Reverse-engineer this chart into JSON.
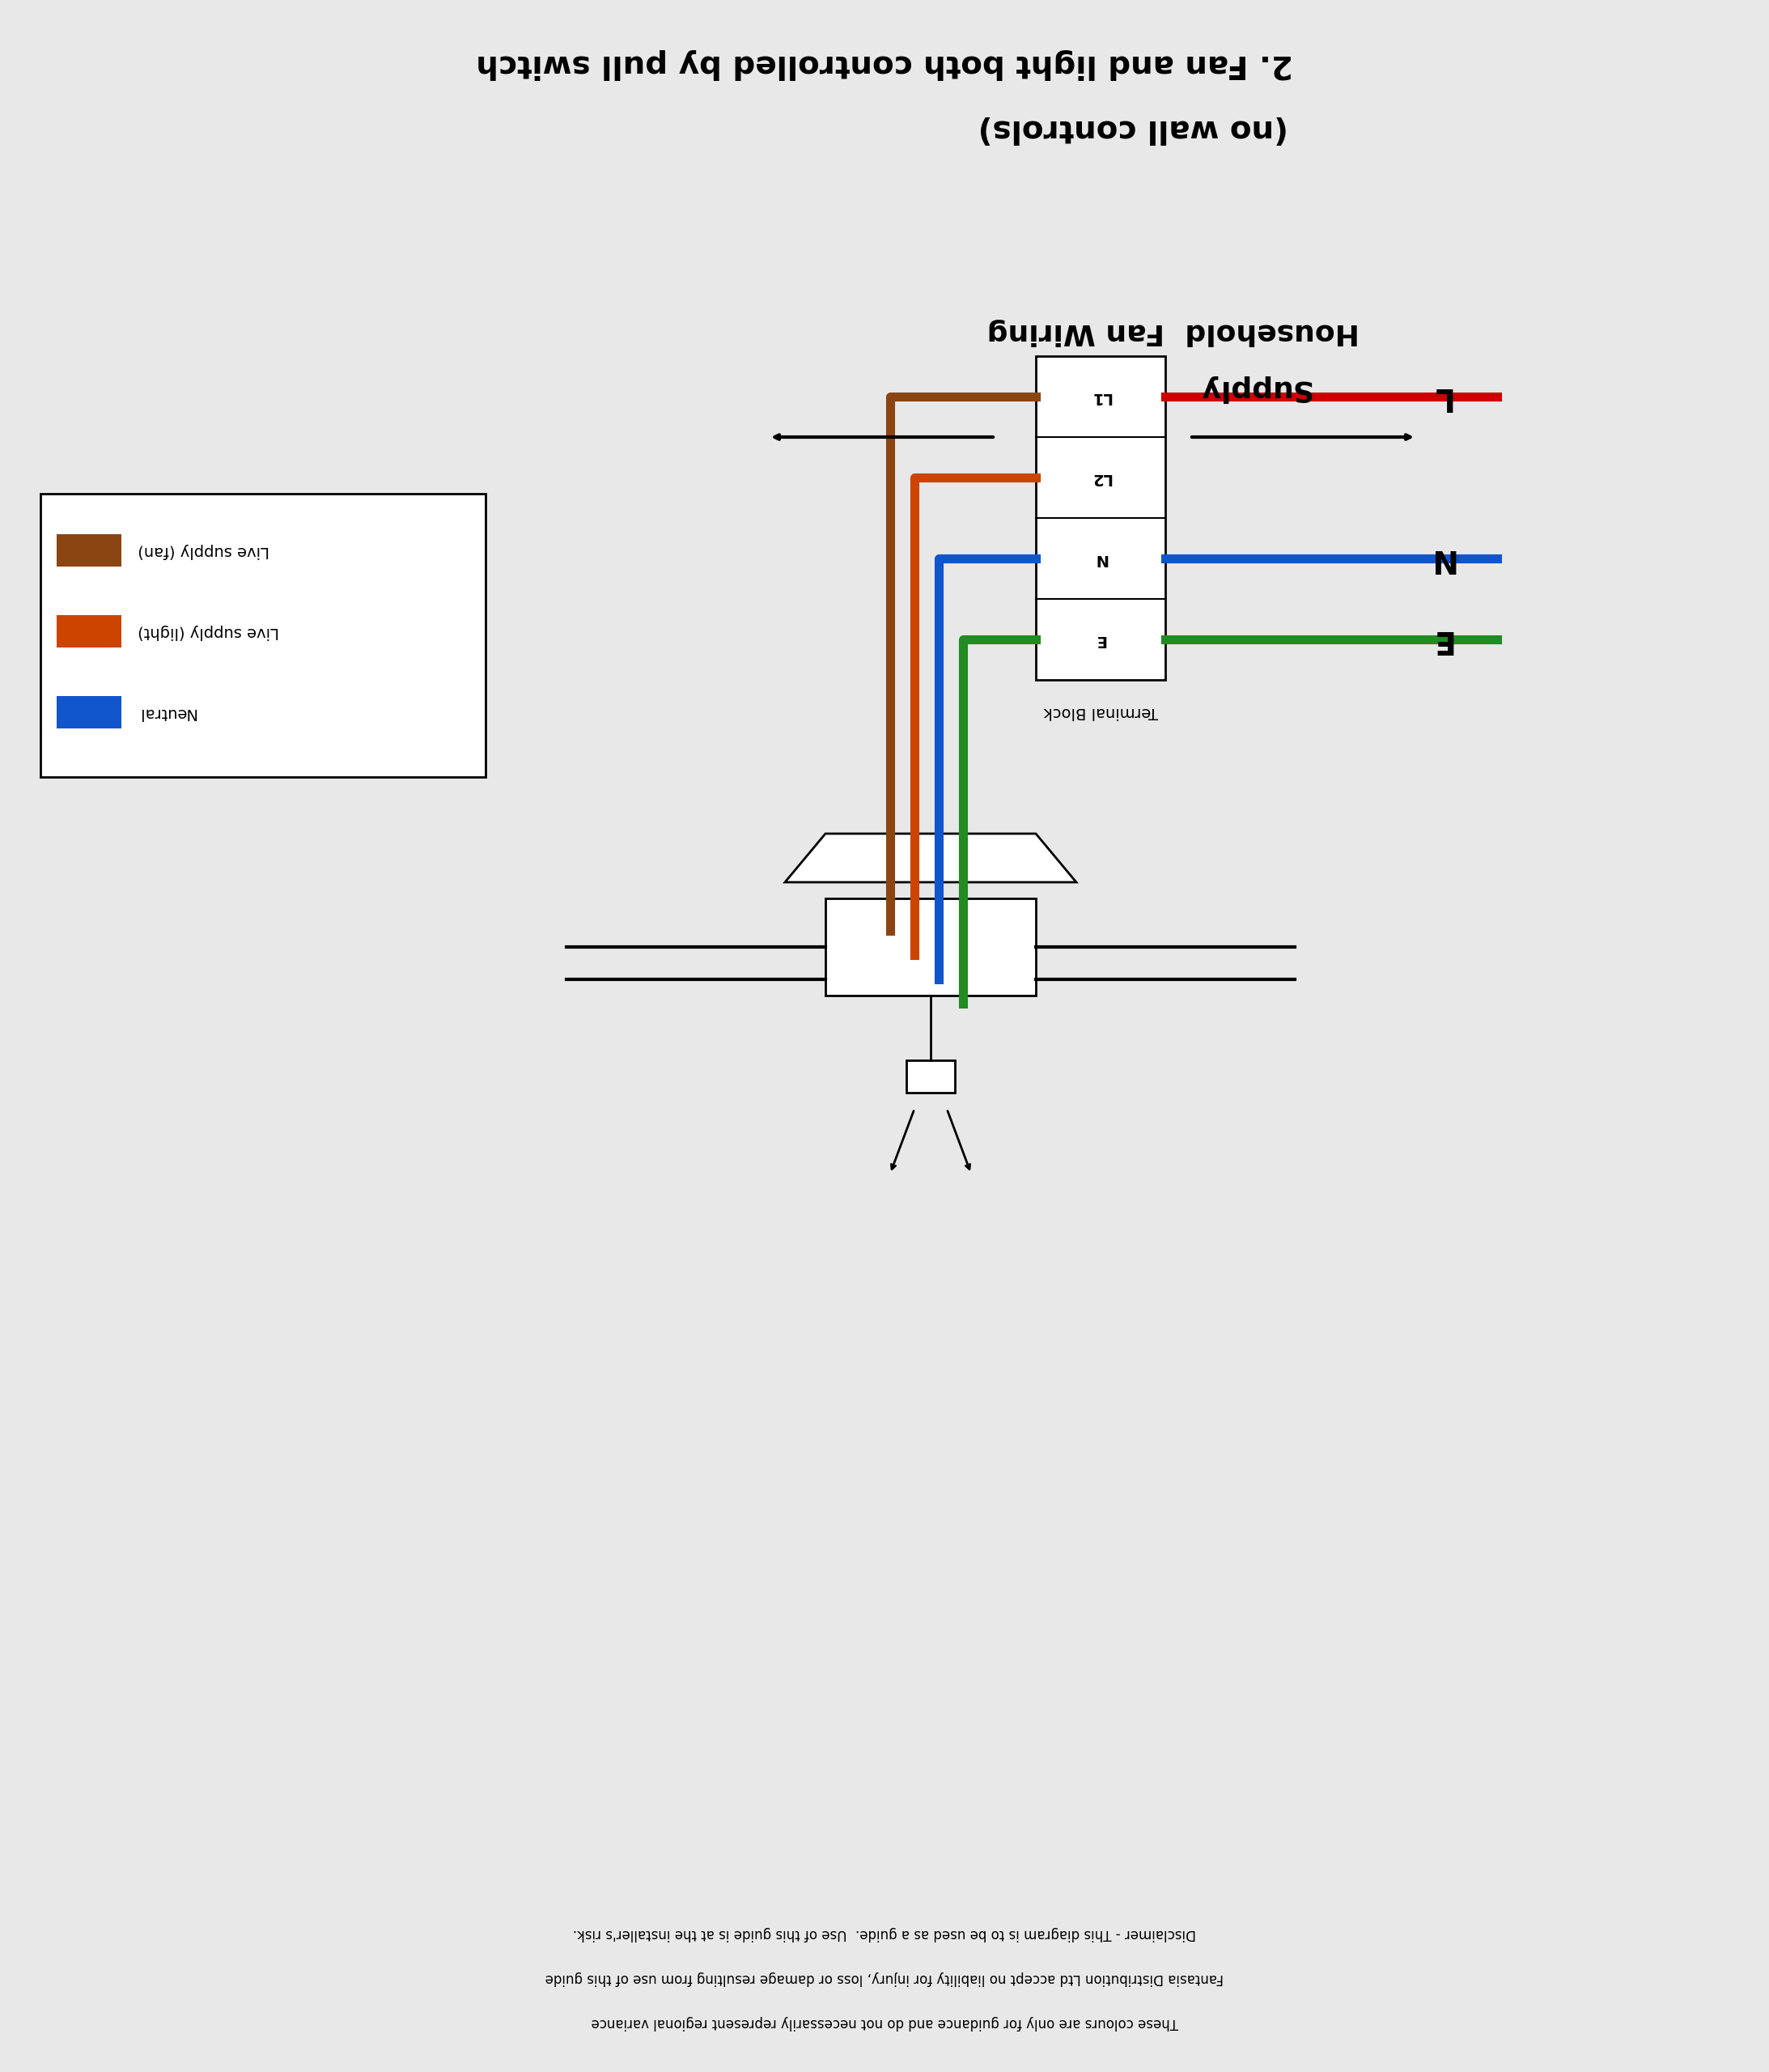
{
  "title_line1": "2. Fan and light both controlled by pull switch",
  "title_line2": "(no wall controls)",
  "supply_label": "Household  Fan Wiring\nSupply",
  "bg_color": "#e8e8e8",
  "wire_colors": {
    "brown": "#8B4513",
    "orange": "#CC4400",
    "blue": "#1155CC",
    "green": "#228B22",
    "red": "#CC0000"
  },
  "legend_items": [
    {
      "label": "Live supply (fan)",
      "color": "#8B4513"
    },
    {
      "label": "Live supply (light)",
      "color": "#CC4400"
    },
    {
      "label": "Neutral",
      "color": "#1155CC"
    }
  ],
  "terminal_labels": [
    "L1",
    "L2",
    "N",
    "E"
  ],
  "side_labels": [
    "L",
    "N",
    "E"
  ],
  "terminal_block_label": "Terminal Block",
  "disclaimer": "Disclaimer - This diagram is to be used as a guide.  Use of this guide is at the installer's risk.\nFantasia Distribution Ltd accept no liability for injury, loss or damage resulting from use of this guide\nThese colours are only for guidance and do not necessarily represent regional variance"
}
